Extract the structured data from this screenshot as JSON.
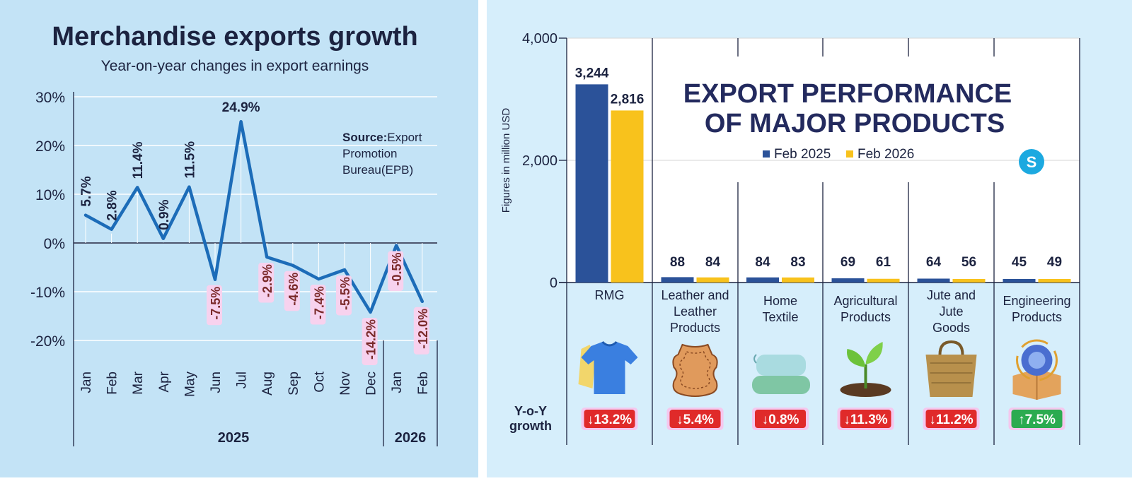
{
  "left": {
    "title": "Merchandise exports growth",
    "subtitle": "Year-on-year changes in export earnings",
    "source_label": "Source:",
    "source_lines": [
      "Export",
      "Promotion",
      "Bureau(EPB)"
    ],
    "colors": {
      "line": "#1c6cb8",
      "negative_label_bg": "#f7d2ee",
      "grid": "#ffffff",
      "text": "#1c2340"
    }
  },
  "right": {
    "title_lines": [
      "EXPORT PERFORMANCE",
      "OF MAJOR PRODUCTS"
    ],
    "ylabel": "Figures in million USD",
    "legend": [
      "Feb 2025",
      "Feb 2026"
    ],
    "yoy_label": [
      "Y-o-Y",
      "growth"
    ],
    "logo_letter": "S",
    "icons": [
      "tshirt-icon",
      "leather-hide-icon",
      "folded-textile-icon",
      "plant-sprout-icon",
      "jute-bag-icon",
      "gear-box-icon"
    ],
    "colors": {
      "feb2025": "#2b5299",
      "feb2026": "#f8c21c",
      "down": "#e02a2a",
      "up": "#2bab50",
      "title": "#232a5e"
    }
  },
  "chart_data": [
    {
      "type": "line",
      "title": "Merchandise exports growth",
      "subtitle": "Year-on-year changes in export earnings",
      "x": [
        "Jan",
        "Feb",
        "Mar",
        "Apr",
        "May",
        "Jun",
        "Jul",
        "Aug",
        "Sep",
        "Oct",
        "Nov",
        "Dec",
        "Jan",
        "Feb"
      ],
      "year_groups": [
        {
          "label": "2025",
          "count": 12
        },
        {
          "label": "2026",
          "count": 2
        }
      ],
      "values": [
        5.7,
        2.8,
        11.4,
        0.9,
        11.5,
        -7.5,
        24.9,
        -2.9,
        -4.6,
        -7.4,
        -5.5,
        -14.2,
        -0.5,
        -12.0
      ],
      "value_labels": [
        "5.7%",
        "2.8%",
        "11.4%",
        "0.9%",
        "11.5%",
        "-7.5%",
        "24.9%",
        "-2.9%",
        "-4.6%",
        "-7.4%",
        "-5.5%",
        "-14.2%",
        "-0.5%",
        "-12.0%"
      ],
      "yticks": [
        "30%",
        "20%",
        "10%",
        "0%",
        "-10%",
        "-20%"
      ],
      "ytick_values": [
        30,
        20,
        10,
        0,
        -10,
        -20
      ],
      "ylim": [
        -20,
        30
      ],
      "grid": true
    },
    {
      "type": "bar",
      "title": "EXPORT PERFORMANCE OF MAJOR PRODUCTS",
      "ylabel": "Figures in million USD",
      "categories": [
        [
          "RMG"
        ],
        [
          "Leather and",
          "Leather",
          "Products"
        ],
        [
          "Home",
          "Textile"
        ],
        [
          "Agricultural",
          "Products"
        ],
        [
          "Jute and",
          "Jute",
          "Goods"
        ],
        [
          "Engineering",
          "Products"
        ]
      ],
      "series": [
        {
          "name": "Feb 2025",
          "values": [
            3244,
            88,
            84,
            69,
            64,
            45
          ],
          "labels": [
            "3,244",
            "88",
            "84",
            "69",
            "64",
            "45"
          ]
        },
        {
          "name": "Feb 2026",
          "values": [
            2816,
            84,
            83,
            61,
            56,
            49
          ],
          "labels": [
            "2,816",
            "84",
            "83",
            "61",
            "56",
            "49"
          ]
        }
      ],
      "yoy_growth": [
        "↓13.2%",
        "↓5.4%",
        "↓0.8%",
        "↓11.3%",
        "↓11.2%",
        "↑7.5%"
      ],
      "yoy_direction": [
        "down",
        "down",
        "down",
        "down",
        "down",
        "up"
      ],
      "yticks": [
        "4,000",
        "2,000",
        "0"
      ],
      "ytick_values": [
        4000,
        2000,
        0
      ],
      "ylim": [
        0,
        4000
      ],
      "legend_position": "center"
    }
  ]
}
